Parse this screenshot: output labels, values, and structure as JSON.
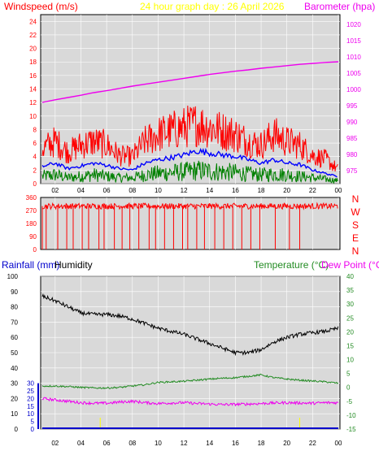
{
  "header": {
    "windspeed_label": "Windspeed (m/s)",
    "title": "24 hour graph day : 26 April 2026",
    "barometer_label": "Barometer (hpa)"
  },
  "lower_header": {
    "rainfall_label": "Rainfall (mm)",
    "humidity_label": "Humidity",
    "temperature_label": "Temperature (°C)",
    "dewpoint_label": "Dew Point (°C)"
  },
  "direction_labels": [
    "N",
    "W",
    "S",
    "E",
    "N"
  ],
  "colors": {
    "windspeed": "#ff0000",
    "windspeed_text": "#ff0000",
    "title_text": "#ffff00",
    "barometer": "#ee00ee",
    "average": "#0000ff",
    "gust_low": "#008000",
    "direction": "#ff0000",
    "humidity": "#000000",
    "temperature": "#228b22",
    "dewpoint": "#ee00ee",
    "rainfall": "#0000cc",
    "plot_bg": "#d9d9d9"
  },
  "chart_data": [
    {
      "type": "line",
      "name": "windspeed-panel",
      "x_ticks": [
        "02",
        "04",
        "06",
        "08",
        "10",
        "12",
        "14",
        "16",
        "18",
        "20",
        "22",
        "00"
      ],
      "x_range": [
        1,
        24
      ],
      "ylabel_left": "Windspeed (m/s)",
      "ylabel_right": "Barometer (hpa)",
      "ylim_left": [
        0,
        25
      ],
      "ylim_right": [
        971,
        1023
      ],
      "y_ticks_left": [
        "0",
        "2",
        "4",
        "6",
        "8",
        "10",
        "12",
        "14",
        "16",
        "18",
        "20",
        "22",
        "24"
      ],
      "y_ticks_right": [
        "975",
        "980",
        "985",
        "990",
        "995",
        "1000",
        "1005",
        "1010",
        "1015",
        "1020"
      ],
      "series": [
        {
          "role": "gust",
          "axis": "left",
          "x": [
            1,
            2,
            3,
            4,
            5,
            6,
            7,
            8,
            9,
            10,
            11,
            12,
            13,
            14,
            15,
            16,
            17,
            18,
            19,
            20,
            21,
            22,
            23,
            24
          ],
          "y": [
            5,
            6,
            4.5,
            5.5,
            6,
            5.5,
            4,
            3.8,
            6,
            7,
            7.5,
            8,
            8.5,
            8,
            7.5,
            7,
            6,
            5.5,
            7,
            6,
            5.5,
            4,
            3.5,
            2
          ]
        },
        {
          "role": "average",
          "axis": "left",
          "x": [
            1,
            2,
            3,
            4,
            5,
            6,
            7,
            8,
            9,
            10,
            11,
            12,
            13,
            14,
            15,
            16,
            17,
            18,
            19,
            20,
            21,
            22,
            23,
            24
          ],
          "y": [
            2.5,
            3,
            2.2,
            2.6,
            3,
            2.7,
            2.2,
            2,
            3,
            3.5,
            3.8,
            4.2,
            4.8,
            4.5,
            4.2,
            4,
            3.5,
            3,
            3.5,
            3,
            2.8,
            2,
            1.5,
            1
          ]
        },
        {
          "role": "minimum",
          "axis": "left",
          "x": [
            1,
            2,
            3,
            4,
            5,
            6,
            7,
            8,
            9,
            10,
            11,
            12,
            13,
            14,
            15,
            16,
            17,
            18,
            19,
            20,
            21,
            22,
            23,
            24
          ],
          "y": [
            1,
            1.2,
            0.8,
            1,
            1.2,
            1,
            0.8,
            0.8,
            1.2,
            1.4,
            1.5,
            1.6,
            1.8,
            1.7,
            1.6,
            1.5,
            1.3,
            1.2,
            1.3,
            1.2,
            1,
            0.8,
            0.6,
            0.4
          ]
        },
        {
          "role": "barometer",
          "axis": "right",
          "x": [
            1,
            2,
            3,
            4,
            5,
            6,
            7,
            8,
            9,
            10,
            11,
            12,
            13,
            14,
            15,
            16,
            17,
            18,
            19,
            20,
            21,
            22,
            23,
            24
          ],
          "y": [
            996,
            996.8,
            997.5,
            998.2,
            999,
            999.6,
            1000.3,
            1001,
            1001.6,
            1002.2,
            1002.8,
            1003.4,
            1004,
            1004.6,
            1005.1,
            1005.6,
            1006,
            1006.5,
            1006.9,
            1007.3,
            1007.7,
            1008,
            1008.3,
            1008.5
          ]
        }
      ]
    },
    {
      "type": "line",
      "name": "direction-panel",
      "x_ticks": [
        "02",
        "04",
        "06",
        "08",
        "10",
        "12",
        "14",
        "16",
        "18",
        "20",
        "22",
        "00"
      ],
      "x_range": [
        1,
        24
      ],
      "y_ticks": [
        "0",
        "90",
        "180",
        "270",
        "360"
      ],
      "ylim": [
        0,
        360
      ],
      "typical_value": 300,
      "dips": [
        1.0,
        1.3,
        2.2,
        2.9,
        3.4,
        4.1,
        4.6,
        5.4,
        5.8,
        6.6,
        7.2,
        7.8,
        8.5,
        9.3,
        9.8,
        10.5,
        11.2,
        11.9,
        12.3,
        13.0,
        13.6,
        14.4,
        15.1,
        15.8,
        16.5,
        17.2,
        17.9,
        19.1,
        20.2,
        21.0
      ]
    },
    {
      "type": "line",
      "name": "temperature-panel",
      "x_ticks": [
        "02",
        "04",
        "06",
        "08",
        "10",
        "12",
        "14",
        "16",
        "18",
        "20",
        "22",
        "00"
      ],
      "x_range": [
        1,
        24
      ],
      "ylabel_left_outer": "Rainfall (mm)",
      "ylabel_left_inner": "Humidity",
      "ylabel_right": "Temperature (°C)",
      "ylabel_right_2": "Dew Point (°C)",
      "y_ticks_humidity": [
        "0",
        "10",
        "20",
        "30",
        "40",
        "50",
        "60",
        "70",
        "80",
        "90",
        "100"
      ],
      "y_ticks_rain": [
        "0",
        "5",
        "10",
        "15",
        "20",
        "25",
        "30"
      ],
      "y_ticks_temp": [
        "-15",
        "-10",
        "-5",
        "0",
        "5",
        "10",
        "15",
        "20",
        "25",
        "30",
        "35",
        "40"
      ],
      "ylim_humidity": [
        0,
        100
      ],
      "ylim_temp": [
        -15,
        40
      ],
      "series": [
        {
          "role": "humidity",
          "axis": "humidity",
          "x": [
            1,
            2,
            3,
            4,
            5,
            6,
            7,
            8,
            9,
            10,
            11,
            12,
            13,
            14,
            15,
            16,
            17,
            18,
            19,
            20,
            21,
            22,
            23,
            24
          ],
          "y": [
            87,
            84,
            80,
            76,
            75,
            75,
            74,
            72,
            69,
            66,
            64,
            62,
            59,
            56,
            53,
            50,
            50,
            52,
            57,
            60,
            62,
            63,
            64,
            66
          ]
        },
        {
          "role": "temperature",
          "axis": "temp",
          "x": [
            1,
            2,
            3,
            4,
            5,
            6,
            7,
            8,
            9,
            10,
            11,
            12,
            13,
            14,
            15,
            16,
            17,
            18,
            19,
            20,
            21,
            22,
            23,
            24
          ],
          "y": [
            0.5,
            0.5,
            0.3,
            0,
            -0.2,
            -0.2,
            0,
            0.5,
            1,
            1.8,
            2,
            2.2,
            2.6,
            3,
            3.3,
            3.5,
            4,
            4.5,
            3.5,
            3,
            2.6,
            2.3,
            2,
            1.5
          ]
        },
        {
          "role": "dewpoint",
          "axis": "temp",
          "x": [
            1,
            2,
            3,
            4,
            5,
            6,
            7,
            8,
            9,
            10,
            11,
            12,
            13,
            14,
            15,
            16,
            17,
            18,
            19,
            20,
            21,
            22,
            23,
            24
          ],
          "y": [
            -4,
            -4.5,
            -5,
            -5.5,
            -5.7,
            -5.7,
            -5.3,
            -5,
            -5.5,
            -5.8,
            -5.6,
            -5.5,
            -5.8,
            -6,
            -6.2,
            -6.1,
            -6,
            -5.8,
            -5.6,
            -5.5,
            -5.6,
            -5.7,
            -5.5,
            -5.5
          ]
        },
        {
          "role": "rainfall",
          "axis": "rain",
          "x": [
            1,
            24
          ],
          "y": [
            0,
            0
          ]
        }
      ],
      "rain_markers": [
        5.5,
        21
      ]
    }
  ]
}
